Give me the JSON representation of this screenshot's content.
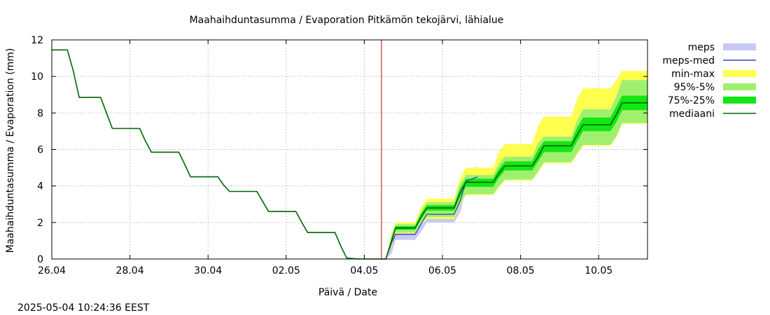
{
  "chart_data": {
    "type": "line",
    "title": "Maahaihduntasumma / Evaporation   Pitkämön tekojärvi, lähialue",
    "xlabel": "Päivä / Date",
    "ylabel": "Maahaihduntasumma / Evaporation (mm)",
    "timestamp": "2025-05-04 10:24:36 EEST",
    "xlim_days": [
      0,
      15.25
    ],
    "ylim": [
      0,
      12
    ],
    "y_ticks": [
      0,
      2,
      4,
      6,
      8,
      10,
      12
    ],
    "x_ticks": [
      {
        "day": 0,
        "label": "26.04"
      },
      {
        "day": 2,
        "label": "28.04"
      },
      {
        "day": 4,
        "label": "30.04"
      },
      {
        "day": 6,
        "label": "02.05"
      },
      {
        "day": 8,
        "label": "04.05"
      },
      {
        "day": 10,
        "label": "06.05"
      },
      {
        "day": 12,
        "label": "08.05"
      },
      {
        "day": 14,
        "label": "10.05"
      }
    ],
    "now_day": 8.44,
    "grid": true,
    "legend_position": "right",
    "colors": {
      "meps": "#c8c8f4",
      "meps_med": "#3c3cc8",
      "minmax": "#ffff50",
      "p95_5": "#a0f070",
      "p75_25": "#14e614",
      "median": "#006400",
      "now_line": "#cc0000",
      "grid": "#a0a0a0"
    },
    "legend": [
      {
        "key": "meps",
        "label": "meps",
        "kind": "band"
      },
      {
        "key": "meps_med",
        "label": "meps-med",
        "kind": "line"
      },
      {
        "key": "minmax",
        "label": "min-max",
        "kind": "band"
      },
      {
        "key": "p95_5",
        "label": "95%-5%",
        "kind": "band"
      },
      {
        "key": "p75_25",
        "label": "75%-25%",
        "kind": "band"
      },
      {
        "key": "median",
        "label": "mediaani",
        "kind": "line"
      }
    ],
    "series": [
      {
        "name": "history",
        "x": [
          0.0,
          0.4,
          0.55,
          0.7,
          1.25,
          1.4,
          1.55,
          2.25,
          2.4,
          2.55,
          3.25,
          3.4,
          3.55,
          4.25,
          4.4,
          4.55,
          5.25,
          5.4,
          5.55,
          6.25,
          6.4,
          6.55,
          7.25,
          7.4,
          7.55,
          7.85,
          8.44
        ],
        "y": [
          11.45,
          11.45,
          10.3,
          8.85,
          8.85,
          8.0,
          7.15,
          7.15,
          6.45,
          5.85,
          5.85,
          5.2,
          4.5,
          4.5,
          4.05,
          3.7,
          3.7,
          3.15,
          2.6,
          2.6,
          2.0,
          1.45,
          1.45,
          0.7,
          0.05,
          0.0,
          0.0
        ]
      },
      {
        "name": "median",
        "x": [
          8.44,
          8.55,
          8.7,
          8.8,
          9.3,
          9.45,
          9.6,
          10.3,
          10.45,
          10.6,
          11.3,
          11.45,
          11.6,
          12.3,
          12.45,
          12.6,
          13.3,
          13.45,
          13.6,
          14.3,
          14.45,
          14.6,
          15.25
        ],
        "y": [
          0.0,
          0.0,
          1.0,
          1.7,
          1.7,
          2.3,
          2.8,
          2.8,
          3.6,
          4.2,
          4.2,
          4.7,
          5.1,
          5.1,
          5.6,
          6.2,
          6.2,
          6.8,
          7.35,
          7.35,
          7.9,
          8.55,
          8.55
        ]
      },
      {
        "name": "p75",
        "x": [
          8.44,
          8.55,
          8.7,
          8.8,
          9.3,
          9.45,
          9.6,
          10.3,
          10.45,
          10.6,
          11.3,
          11.45,
          11.6,
          12.3,
          12.45,
          12.6,
          13.3,
          13.45,
          13.6,
          14.3,
          14.45,
          14.6,
          15.25
        ],
        "y": [
          0.0,
          0.0,
          1.15,
          1.8,
          1.8,
          2.45,
          2.95,
          2.95,
          3.85,
          4.4,
          4.4,
          4.95,
          5.35,
          5.35,
          6.0,
          6.45,
          6.45,
          7.2,
          7.75,
          7.75,
          8.35,
          8.95,
          8.95
        ]
      },
      {
        "name": "p25",
        "x": [
          8.44,
          8.55,
          8.7,
          8.8,
          9.3,
          9.45,
          9.6,
          10.3,
          10.45,
          10.6,
          11.3,
          11.45,
          11.6,
          12.3,
          12.45,
          12.6,
          13.3,
          13.45,
          13.6,
          14.3,
          14.45,
          14.6,
          15.25
        ],
        "y": [
          0.0,
          0.0,
          0.9,
          1.6,
          1.6,
          2.15,
          2.65,
          2.65,
          3.4,
          3.95,
          3.95,
          4.45,
          4.85,
          4.85,
          5.35,
          5.85,
          5.85,
          6.45,
          7.0,
          7.0,
          7.5,
          8.15,
          8.15
        ]
      },
      {
        "name": "p95",
        "x": [
          8.44,
          8.55,
          8.7,
          8.8,
          9.3,
          9.45,
          9.6,
          10.3,
          10.45,
          10.6,
          11.3,
          11.45,
          11.6,
          12.3,
          12.45,
          12.6,
          13.3,
          13.45,
          13.6,
          14.3,
          14.45,
          14.6,
          15.25
        ],
        "y": [
          0.0,
          0.0,
          1.3,
          1.9,
          1.9,
          2.6,
          3.1,
          3.1,
          4.1,
          4.6,
          4.6,
          5.25,
          5.6,
          5.6,
          6.35,
          6.7,
          6.7,
          7.6,
          8.2,
          8.2,
          8.9,
          9.8,
          9.8
        ]
      },
      {
        "name": "p5",
        "x": [
          8.44,
          8.55,
          8.7,
          8.8,
          9.3,
          9.45,
          9.6,
          10.3,
          10.45,
          10.6,
          11.3,
          11.45,
          11.6,
          12.3,
          12.45,
          12.6,
          13.3,
          13.45,
          13.6,
          14.3,
          14.45,
          14.6,
          15.25
        ],
        "y": [
          0.0,
          0.0,
          0.75,
          1.45,
          1.45,
          1.9,
          2.3,
          2.3,
          3.0,
          3.55,
          3.55,
          4.0,
          4.35,
          4.35,
          4.8,
          5.3,
          5.3,
          5.8,
          6.25,
          6.25,
          6.7,
          7.45,
          7.45
        ]
      },
      {
        "name": "max",
        "x": [
          8.44,
          8.55,
          8.7,
          8.8,
          9.3,
          9.45,
          9.6,
          10.3,
          10.45,
          10.6,
          11.3,
          11.45,
          11.6,
          12.3,
          12.45,
          12.6,
          13.3,
          13.45,
          13.6,
          14.3,
          14.45,
          14.6,
          15.25
        ],
        "y": [
          0.0,
          0.0,
          1.45,
          2.0,
          2.0,
          2.8,
          3.3,
          3.3,
          4.4,
          5.0,
          5.0,
          5.9,
          6.3,
          6.3,
          7.3,
          7.8,
          7.8,
          8.8,
          9.35,
          9.35,
          9.8,
          10.3,
          10.3
        ]
      },
      {
        "name": "min",
        "x": [
          8.44,
          8.55,
          8.7,
          8.8,
          9.3,
          9.45,
          9.6,
          10.3,
          10.45,
          10.6,
          11.3,
          11.45,
          11.6,
          12.3,
          12.45,
          12.6,
          13.3,
          13.45,
          13.6,
          14.3,
          14.45,
          14.6,
          15.25
        ],
        "y": [
          0.0,
          0.0,
          0.7,
          1.4,
          1.4,
          1.85,
          2.2,
          2.2,
          2.95,
          3.5,
          3.5,
          3.95,
          4.3,
          4.3,
          4.75,
          5.25,
          5.25,
          5.75,
          6.2,
          6.2,
          6.65,
          7.4,
          7.4
        ]
      },
      {
        "name": "meps_max",
        "x": [
          8.44,
          8.55,
          8.7,
          8.8,
          9.3,
          9.45,
          9.6,
          10.3,
          10.45,
          10.6,
          10.9
        ],
        "y": [
          0.0,
          0.0,
          1.2,
          1.65,
          1.65,
          2.2,
          2.7,
          2.7,
          3.6,
          4.8,
          5.05
        ]
      },
      {
        "name": "meps_min",
        "x": [
          8.44,
          8.55,
          8.7,
          8.8,
          9.3,
          9.45,
          9.6,
          10.3,
          10.45,
          10.6,
          10.9
        ],
        "y": [
          0.0,
          0.0,
          0.3,
          1.05,
          1.05,
          1.5,
          2.0,
          2.0,
          2.55,
          3.75,
          4.05
        ]
      },
      {
        "name": "meps_med",
        "x": [
          8.44,
          8.55,
          8.7,
          8.8,
          9.3,
          9.45,
          9.6,
          10.3,
          10.45,
          10.6,
          10.9
        ],
        "y": [
          0.0,
          0.0,
          0.9,
          1.35,
          1.35,
          1.9,
          2.45,
          2.45,
          3.15,
          4.25,
          4.5
        ]
      }
    ]
  }
}
